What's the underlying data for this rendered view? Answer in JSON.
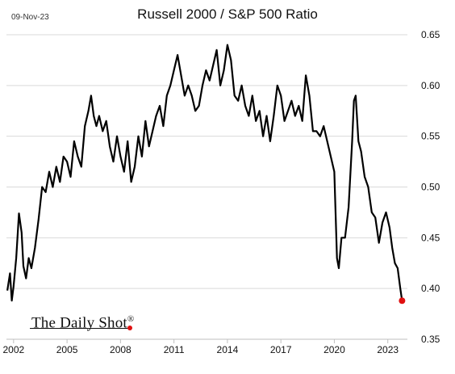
{
  "header": {
    "date": "09-Nov-23",
    "title": "Russell 2000 / S&P 500 Ratio"
  },
  "brand": {
    "name": "The Daily Shot",
    "mark": "®"
  },
  "chart_data": {
    "type": "line",
    "title": "Russell 2000 / S&P 500 Ratio",
    "xlabel": "",
    "ylabel": "",
    "xlim": [
      2001.6,
      2024.1
    ],
    "ylim": [
      0.35,
      0.65
    ],
    "x_ticks": [
      2002,
      2005,
      2008,
      2011,
      2014,
      2017,
      2020,
      2023
    ],
    "x_tick_labels": [
      "2002",
      "2005",
      "2008",
      "2011",
      "2014",
      "2017",
      "2020",
      "2023"
    ],
    "y_ticks": [
      0.35,
      0.4,
      0.45,
      0.5,
      0.55,
      0.6,
      0.65
    ],
    "y_tick_labels": [
      "0.35",
      "0.40",
      "0.45",
      "0.50",
      "0.55",
      "0.60",
      "0.65"
    ],
    "grid": true,
    "y_axis_side": "right",
    "line_color": "#000000",
    "endpoint_color": "#e01010",
    "series": [
      {
        "x": [
          2001.65,
          2001.8,
          2001.9,
          2002.0,
          2002.15,
          2002.3,
          2002.45,
          2002.55,
          2002.7,
          2002.85,
          2003.0,
          2003.2,
          2003.4,
          2003.6,
          2003.8,
          2004.0,
          2004.2,
          2004.4,
          2004.6,
          2004.8,
          2005.0,
          2005.2,
          2005.4,
          2005.6,
          2005.8,
          2006.0,
          2006.2,
          2006.35,
          2006.5,
          2006.65,
          2006.8,
          2007.0,
          2007.2,
          2007.4,
          2007.6,
          2007.8,
          2008.0,
          2008.2,
          2008.4,
          2008.6,
          2008.8,
          2009.0,
          2009.2,
          2009.4,
          2009.6,
          2009.8,
          2010.0,
          2010.2,
          2010.4,
          2010.6,
          2010.8,
          2011.0,
          2011.2,
          2011.4,
          2011.6,
          2011.8,
          2012.0,
          2012.2,
          2012.4,
          2012.6,
          2012.8,
          2013.0,
          2013.2,
          2013.4,
          2013.6,
          2013.8,
          2014.0,
          2014.2,
          2014.4,
          2014.6,
          2014.8,
          2015.0,
          2015.2,
          2015.4,
          2015.6,
          2015.8,
          2016.0,
          2016.2,
          2016.4,
          2016.6,
          2016.8,
          2017.0,
          2017.2,
          2017.4,
          2017.6,
          2017.8,
          2018.0,
          2018.2,
          2018.4,
          2018.6,
          2018.8,
          2019.0,
          2019.2,
          2019.4,
          2019.6,
          2019.8,
          2020.0,
          2020.15,
          2020.25,
          2020.4,
          2020.6,
          2020.8,
          2021.0,
          2021.1,
          2021.2,
          2021.35,
          2021.5,
          2021.7,
          2021.9,
          2022.1,
          2022.3,
          2022.5,
          2022.7,
          2022.9,
          2023.1,
          2023.25,
          2023.4,
          2023.55,
          2023.7,
          2023.8
        ],
        "y": [
          0.398,
          0.415,
          0.388,
          0.402,
          0.43,
          0.474,
          0.455,
          0.422,
          0.41,
          0.43,
          0.42,
          0.44,
          0.468,
          0.5,
          0.495,
          0.515,
          0.5,
          0.52,
          0.505,
          0.53,
          0.525,
          0.51,
          0.545,
          0.53,
          0.52,
          0.56,
          0.575,
          0.59,
          0.57,
          0.56,
          0.57,
          0.555,
          0.565,
          0.54,
          0.525,
          0.55,
          0.53,
          0.515,
          0.545,
          0.505,
          0.52,
          0.55,
          0.53,
          0.565,
          0.54,
          0.555,
          0.57,
          0.58,
          0.56,
          0.59,
          0.6,
          0.615,
          0.63,
          0.61,
          0.59,
          0.6,
          0.59,
          0.575,
          0.58,
          0.6,
          0.615,
          0.605,
          0.62,
          0.635,
          0.6,
          0.615,
          0.64,
          0.625,
          0.59,
          0.585,
          0.6,
          0.58,
          0.57,
          0.59,
          0.565,
          0.575,
          0.55,
          0.57,
          0.545,
          0.57,
          0.6,
          0.59,
          0.565,
          0.575,
          0.585,
          0.57,
          0.58,
          0.565,
          0.61,
          0.59,
          0.555,
          0.555,
          0.55,
          0.56,
          0.545,
          0.53,
          0.515,
          0.43,
          0.42,
          0.45,
          0.45,
          0.48,
          0.545,
          0.585,
          0.59,
          0.545,
          0.535,
          0.51,
          0.5,
          0.475,
          0.47,
          0.445,
          0.465,
          0.475,
          0.46,
          0.44,
          0.425,
          0.42,
          0.4,
          0.388
        ]
      }
    ]
  }
}
